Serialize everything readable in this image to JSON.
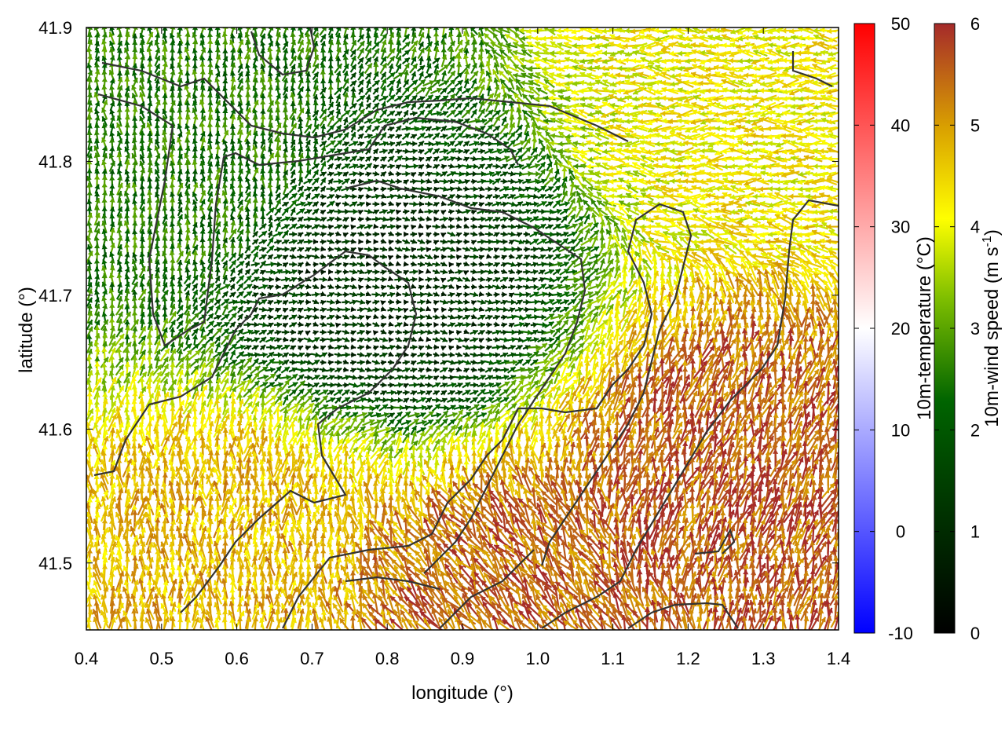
{
  "chart_data": {
    "type": "vector-field",
    "xlabel": "longitude (°)",
    "ylabel": "latitude (°)",
    "xlim": [
      0.4,
      1.4
    ],
    "ylim": [
      41.45,
      41.9
    ],
    "xticks": [
      "0.4",
      "0.5",
      "0.6",
      "0.7",
      "0.8",
      "0.9",
      "1.0",
      "1.1",
      "1.2",
      "1.3",
      "1.4"
    ],
    "yticks": [
      "41.5",
      "41.6",
      "41.7",
      "41.8",
      "41.9"
    ],
    "colorbars": [
      {
        "name": "temperature",
        "label": "10m-temperature (°C)",
        "range": [
          -10,
          50
        ],
        "ticks": [
          "-10",
          "0",
          "10",
          "20",
          "30",
          "40",
          "50"
        ],
        "colors": [
          "#0000ff",
          "#ffffff",
          "#ff0000"
        ]
      },
      {
        "name": "wind-speed",
        "label_main": "10m-wind speed (m s",
        "label_sup": "-1",
        "label_end": ")",
        "range": [
          0,
          6
        ],
        "ticks": [
          "0",
          "1",
          "2",
          "3",
          "4",
          "5",
          "6"
        ],
        "colors": [
          "#000000",
          "#006400",
          "#7fbf00",
          "#ffff00",
          "#d9a000",
          "#a52a2a"
        ]
      }
    ],
    "wind_field_regions": [
      {
        "region": "north-west",
        "lon": [
          0.4,
          0.6
        ],
        "lat": [
          41.7,
          41.9
        ],
        "speed": 2.5,
        "direction": "north"
      },
      {
        "region": "north-east",
        "lon": [
          1.2,
          1.4
        ],
        "lat": [
          41.8,
          41.9
        ],
        "speed": 4.2,
        "direction": "west"
      },
      {
        "region": "center",
        "lon": [
          0.6,
          1.0
        ],
        "lat": [
          41.6,
          41.8
        ],
        "speed": 1.0,
        "direction": "east"
      },
      {
        "region": "south-west",
        "lon": [
          0.4,
          0.8
        ],
        "lat": [
          41.45,
          41.6
        ],
        "speed": 4.8,
        "direction": "north"
      },
      {
        "region": "south-east",
        "lon": [
          1.1,
          1.4
        ],
        "lat": [
          41.45,
          41.7
        ],
        "speed": 5.6,
        "direction": "north-north-east"
      },
      {
        "region": "south-center",
        "lon": [
          0.8,
          1.1
        ],
        "lat": [
          41.45,
          41.5
        ],
        "speed": 5.5,
        "direction": "north-west"
      }
    ]
  }
}
